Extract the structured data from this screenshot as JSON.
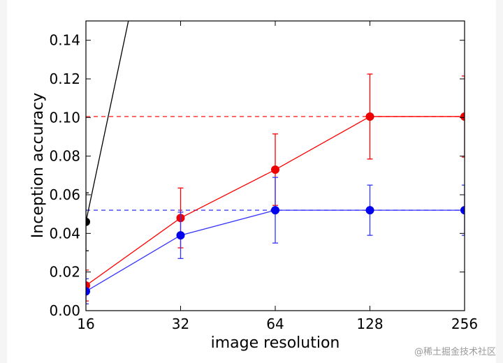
{
  "watermark": "@稀土掘金技术社区",
  "chart_data": {
    "type": "line",
    "xlabel": "image resolution",
    "ylabel": "Inception accuracy",
    "x_scale": "log2",
    "xlim": [
      16,
      256
    ],
    "ylim": [
      0,
      0.15
    ],
    "xticks": [
      16,
      32,
      64,
      128,
      256
    ],
    "yticks": [
      0.0,
      0.02,
      0.04,
      0.06,
      0.08,
      0.1,
      0.12,
      0.14
    ],
    "grid": false,
    "legend": null,
    "series": [
      {
        "color": "#ff0000",
        "marker_color": "#ee0000",
        "x": [
          16,
          32,
          64,
          128,
          256
        ],
        "y": [
          0.013,
          0.048,
          0.073,
          0.1005,
          0.1005
        ],
        "err": [
          0.008,
          0.0155,
          0.0185,
          0.022,
          0.021
        ]
      },
      {
        "color": "#3333ff",
        "marker_color": "#0000ee",
        "x": [
          16,
          32,
          64,
          128,
          256
        ],
        "y": [
          0.01,
          0.039,
          0.052,
          0.052,
          0.052
        ],
        "err": [
          0.0065,
          0.012,
          0.017,
          0.013,
          0.013
        ]
      },
      {
        "color": "#000000",
        "marker_color": "#000000",
        "x": [
          16,
          22.5
        ],
        "y": [
          0.046,
          0.16
        ],
        "err": [
          0.015,
          0
        ]
      }
    ],
    "reference_lines": [
      {
        "color": "#ff0000",
        "y": 0.1005,
        "style": "dashed"
      },
      {
        "color": "#3333ff",
        "y": 0.052,
        "style": "dashed"
      }
    ]
  }
}
